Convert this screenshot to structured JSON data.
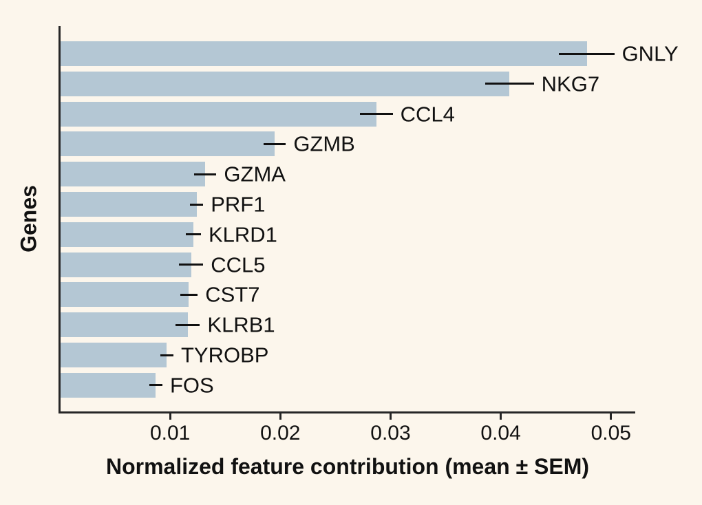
{
  "figure": {
    "background_color": "#FCF6EC",
    "axis_color": "#262626",
    "text_color": "#111111"
  },
  "chart_data": {
    "type": "bar",
    "orientation": "horizontal",
    "title": "",
    "xlabel": "Normalized feature contribution (mean ± SEM)",
    "ylabel": "Genes",
    "xlim": [
      0,
      0.0522
    ],
    "xticks": [
      0.01,
      0.02,
      0.03,
      0.04,
      0.05
    ],
    "xtick_labels": [
      "0.01",
      "0.02",
      "0.03",
      "0.04",
      "0.05"
    ],
    "grid": false,
    "legend": false,
    "bar_color": "#B4C7D4",
    "error_bar_color": "#111111",
    "categories": [
      "GNLY",
      "NKG7",
      "CCL4",
      "GZMB",
      "GZMA",
      "PRF1",
      "KLRD1",
      "CCL5",
      "CST7",
      "KLRB1",
      "TYROBP",
      "FOS"
    ],
    "values": [
      0.0478,
      0.0408,
      0.0287,
      0.0195,
      0.0132,
      0.0124,
      0.0121,
      0.0119,
      0.0117,
      0.0116,
      0.0097,
      0.0087
    ],
    "errors": [
      0.0025,
      0.0022,
      0.0015,
      0.001,
      0.001,
      0.0006,
      0.0007,
      0.0011,
      0.0008,
      0.0011,
      0.0006,
      0.0006
    ]
  }
}
